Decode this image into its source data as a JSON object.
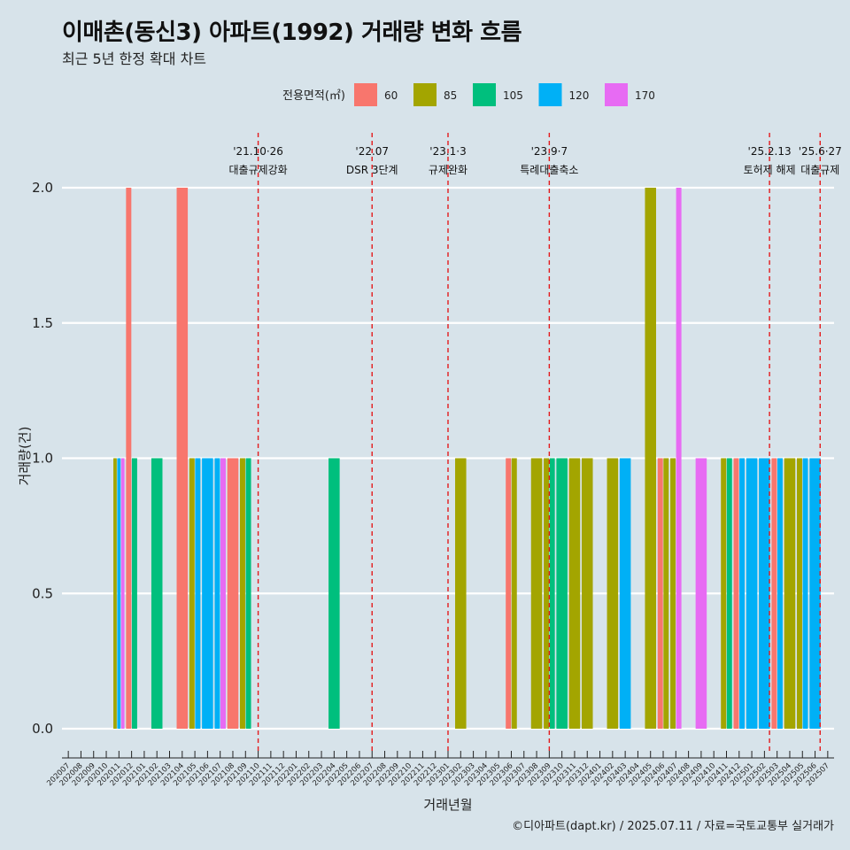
{
  "title": "이매촌(동신3) 아파트(1992) 거래량 변화 흐름",
  "subtitle": "최근 5년 한정 확대 차트",
  "caption": "©디아파트(dapt.kr) / 2025.07.11 / 자료=국토교통부 실거래가",
  "colors": {
    "background": "#d7e3ea",
    "grid": "#ffffff",
    "vline": "#e41a1c"
  },
  "chart_data": {
    "type": "bar",
    "xlabel": "거래년월",
    "ylabel": "거래량(건)",
    "ylim": [
      -0.07,
      2.2
    ],
    "yticks": [
      "0.0",
      "0.5",
      "1.0",
      "1.5",
      "2.0"
    ],
    "ytick_values": [
      0,
      0.5,
      1.0,
      1.5,
      2.0
    ],
    "grid": true,
    "legend_title": "전용면적(㎡)",
    "legend_position": "top",
    "series": [
      {
        "name": "60",
        "color": "#f8766d"
      },
      {
        "name": "85",
        "color": "#a3a500"
      },
      {
        "name": "105",
        "color": "#00bf7d"
      },
      {
        "name": "120",
        "color": "#00b0f6"
      },
      {
        "name": "170",
        "color": "#e76bf3"
      }
    ],
    "categories": [
      "202007",
      "202008",
      "202009",
      "202010",
      "202011",
      "202012",
      "202101",
      "202102",
      "202103",
      "202104",
      "202105",
      "202106",
      "202107",
      "202108",
      "202109",
      "202110",
      "202111",
      "202112",
      "202201",
      "202202",
      "202203",
      "202204",
      "202205",
      "202206",
      "202207",
      "202208",
      "202209",
      "202210",
      "202211",
      "202212",
      "202301",
      "202302",
      "202303",
      "202304",
      "202305",
      "202306",
      "202307",
      "202308",
      "202309",
      "202310",
      "202311",
      "202312",
      "202401",
      "202402",
      "202403",
      "202404",
      "202405",
      "202406",
      "202407",
      "202408",
      "202409",
      "202410",
      "202411",
      "202412",
      "202501",
      "202502",
      "202503",
      "202504",
      "202505",
      "202506",
      "202507"
    ],
    "bars": [
      {
        "month": "202011",
        "values": {
          "85": 1,
          "120": 1,
          "170": 1
        }
      },
      {
        "month": "202012",
        "values": {
          "60": 2,
          "105": 1
        }
      },
      {
        "month": "202102",
        "values": {
          "105": 1
        }
      },
      {
        "month": "202104",
        "values": {
          "60": 2
        }
      },
      {
        "month": "202105",
        "values": {
          "85": 1,
          "120": 1
        }
      },
      {
        "month": "202106",
        "values": {
          "120": 1
        }
      },
      {
        "month": "202107",
        "values": {
          "120": 1,
          "170": 1
        }
      },
      {
        "month": "202108",
        "values": {
          "60": 1
        }
      },
      {
        "month": "202109",
        "values": {
          "85": 1,
          "105": 1
        }
      },
      {
        "month": "202204",
        "values": {
          "105": 1
        }
      },
      {
        "month": "202302",
        "values": {
          "85": 1
        }
      },
      {
        "month": "202306",
        "values": {
          "60": 1,
          "85": 1
        }
      },
      {
        "month": "202308",
        "values": {
          "85": 1
        }
      },
      {
        "month": "202309",
        "values": {
          "85": 1,
          "105": 1
        }
      },
      {
        "month": "202310",
        "values": {
          "105": 1
        }
      },
      {
        "month": "202311",
        "values": {
          "85": 1
        }
      },
      {
        "month": "202312",
        "values": {
          "85": 1
        }
      },
      {
        "month": "202402",
        "values": {
          "85": 1
        }
      },
      {
        "month": "202403",
        "values": {
          "120": 1
        }
      },
      {
        "month": "202405",
        "values": {
          "85": 2
        }
      },
      {
        "month": "202406",
        "values": {
          "60": 1,
          "85": 1
        }
      },
      {
        "month": "202407",
        "values": {
          "85": 1,
          "170": 2
        }
      },
      {
        "month": "202409",
        "values": {
          "170": 1
        }
      },
      {
        "month": "202411",
        "values": {
          "85": 1,
          "105": 1
        }
      },
      {
        "month": "202412",
        "values": {
          "60": 1,
          "120": 1
        }
      },
      {
        "month": "202501",
        "values": {
          "120": 1
        }
      },
      {
        "month": "202502",
        "values": {
          "120": 1
        }
      },
      {
        "month": "202503",
        "values": {
          "60": 1,
          "120": 1
        }
      },
      {
        "month": "202504",
        "values": {
          "85": 1
        }
      },
      {
        "month": "202505",
        "values": {
          "85": 1,
          "120": 1
        }
      },
      {
        "month": "202506",
        "values": {
          "120": 1
        }
      }
    ],
    "events": [
      {
        "x": 15,
        "date": "'21.10·26",
        "label": "대출규제강화"
      },
      {
        "x": 24,
        "date": "'22.07",
        "label": "DSR 3단계"
      },
      {
        "x": 30,
        "date": "'23.1·3",
        "label": "규제완화"
      },
      {
        "x": 38,
        "date": "'23.9·7",
        "label": "특례대출축소"
      },
      {
        "x": 55.4,
        "date": "'25.2.13",
        "label": "토허제 해제"
      },
      {
        "x": 59.4,
        "date": "'25.6·27",
        "label": "대출규제"
      }
    ]
  }
}
